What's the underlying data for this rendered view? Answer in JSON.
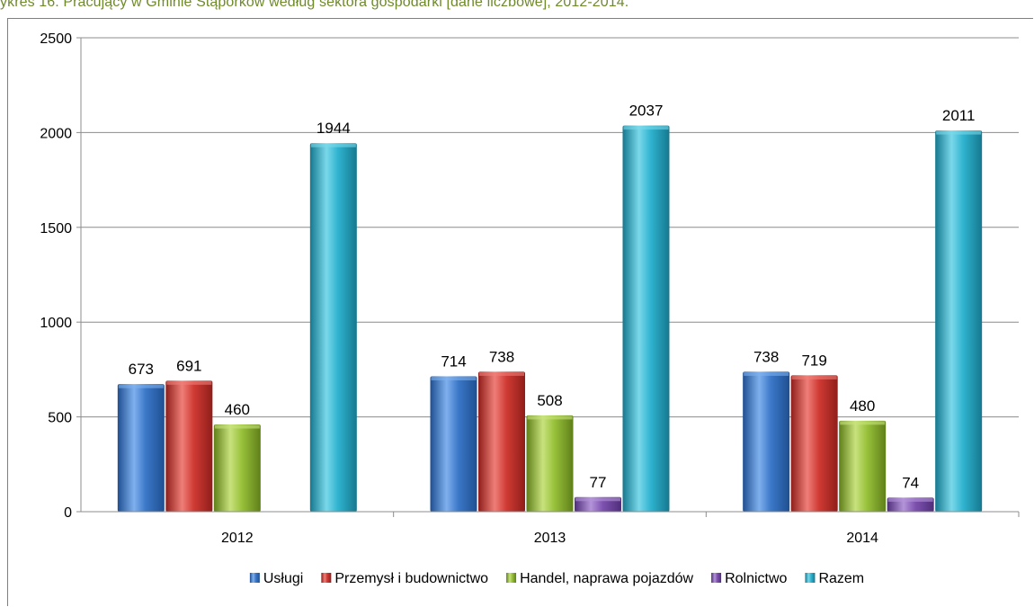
{
  "title": "ykres 16. Pracujący w Gminie Stąporków według sektora gospodarki [dane liczbowe], 2012-2014.",
  "chart_data": {
    "type": "bar",
    "categories": [
      "2012",
      "2013",
      "2014"
    ],
    "ylim": [
      0,
      2500
    ],
    "yticks": [
      0,
      500,
      1000,
      1500,
      2000,
      2500
    ],
    "grid": true,
    "legend_position": "bottom",
    "series": [
      {
        "name": "Usługi",
        "values": [
          673,
          714,
          738
        ],
        "color": "#3b78c8",
        "light": "#7fb0ee",
        "dark": "#1f4f91"
      },
      {
        "name": "Przemysł i budownictwo",
        "values": [
          691,
          738,
          719
        ],
        "color": "#d03a34",
        "light": "#ef7e78",
        "dark": "#8f1e1a"
      },
      {
        "name": "Handel, naprawa pojazdów",
        "values": [
          460,
          508,
          480
        ],
        "color": "#98c13a",
        "light": "#c8e27d",
        "dark": "#5f7f19"
      },
      {
        "name": "Rolnictwo",
        "values": [
          null,
          77,
          74
        ],
        "color": "#7e52b0",
        "light": "#b494d9",
        "dark": "#4f2e7a"
      },
      {
        "name": "Razem",
        "values": [
          1944,
          2037,
          2011
        ],
        "color": "#2fb3cf",
        "light": "#7ad8ea",
        "dark": "#15788f"
      }
    ]
  }
}
